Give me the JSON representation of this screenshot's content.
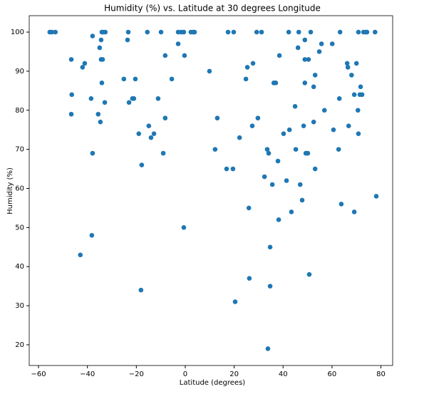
{
  "chart_data": {
    "type": "scatter",
    "title": "Humidity (%) vs. Latitude at 30 degrees Longitude",
    "x_label": "Latitude (degrees)",
    "y_label": "Humidity (%)",
    "color": "#1f77b4",
    "xlim": [
      -63.8,
      84.8
    ],
    "ylim": [
      14.7,
      104.2
    ],
    "xticks": [
      {
        "value": -60,
        "label": "−60"
      },
      {
        "value": -40,
        "label": "−40"
      },
      {
        "value": -20,
        "label": "−20"
      },
      0,
      20,
      40,
      60,
      80
    ],
    "yticks": [
      20,
      30,
      40,
      50,
      60,
      70,
      80,
      90,
      100
    ],
    "x": [
      -55.4,
      -54.5,
      -53.1,
      -46.6,
      -46.4,
      -46.6,
      -42,
      -41.1,
      -42.9,
      -38.5,
      -37.9,
      -37.9,
      -38.2,
      -35,
      -35.6,
      -34.7,
      -34.4,
      -34.1,
      -33.5,
      -32.7,
      -34.4,
      -33.8,
      -34.1,
      -32.9,
      -25.1,
      -23.3,
      -23.6,
      -23,
      -21.6,
      -21,
      -20.4,
      -19,
      -17.8,
      -18.1,
      -15.5,
      -14.9,
      -14,
      -12.8,
      -11.1,
      -9.9,
      -9,
      -8.2,
      -8.2,
      -5.5,
      -2.9,
      -2.9,
      -1.7,
      -0.6,
      -0.3,
      -0.6,
      2.3,
      3.2,
      3.8,
      9.9,
      12.2,
      13.1,
      16.9,
      17.5,
      19.8,
      19.5,
      20.4,
      22.2,
      24.8,
      25.4,
      26,
      26.2,
      27.4,
      27.7,
      29.2,
      29.7,
      31.2,
      32.4,
      33.5,
      34.1,
      33.8,
      34.7,
      34.7,
      35.6,
      36.2,
      37,
      37.9,
      38.2,
      38.5,
      40.2,
      41.4,
      42.3,
      42.6,
      43.4,
      44.9,
      45.2,
      46.1,
      46.4,
      47,
      47.8,
      48.4,
      48.9,
      48.9,
      48.9,
      49.3,
      50.1,
      50.4,
      50.7,
      51.3,
      52.5,
      52.5,
      53.1,
      53.1,
      54.8,
      55.7,
      56.9,
      60.1,
      60.6,
      62.7,
      63.3,
      63,
      63.8,
      66.2,
      66.5,
      66.8,
      68,
      69.1,
      69.1,
      70,
      70.6,
      70.8,
      70.8,
      71.4,
      71.7,
      72.3,
      72.9,
      73.8,
      74.3,
      77.6,
      78.1
    ],
    "y": [
      100,
      100,
      100,
      93,
      84,
      79,
      91,
      92,
      43,
      83,
      99,
      69,
      48,
      96,
      79,
      77,
      98,
      100,
      100,
      100,
      93,
      93,
      87,
      82,
      88,
      100,
      98,
      82,
      83,
      83,
      88,
      74,
      66,
      34,
      100,
      76,
      73,
      74,
      83,
      100,
      69,
      94,
      78,
      88,
      97,
      100,
      100,
      50,
      94,
      100,
      100,
      100,
      100,
      90,
      70,
      78,
      65,
      100,
      100,
      65,
      31,
      73,
      88,
      91,
      55,
      37,
      76,
      92,
      100,
      78,
      100,
      63,
      70,
      69,
      19,
      45,
      35,
      61,
      87,
      87,
      67,
      52,
      94,
      74,
      62,
      100,
      75,
      54,
      81,
      70,
      96,
      100,
      61,
      57,
      76,
      93,
      98,
      87,
      69,
      69,
      93,
      38,
      100,
      86,
      77,
      89,
      65,
      95,
      97,
      80,
      97,
      75,
      70,
      100,
      83,
      56,
      92,
      91,
      76,
      89,
      84,
      54,
      92,
      80,
      74,
      100,
      84,
      86,
      84,
      100,
      100,
      100,
      100,
      58
    ]
  }
}
